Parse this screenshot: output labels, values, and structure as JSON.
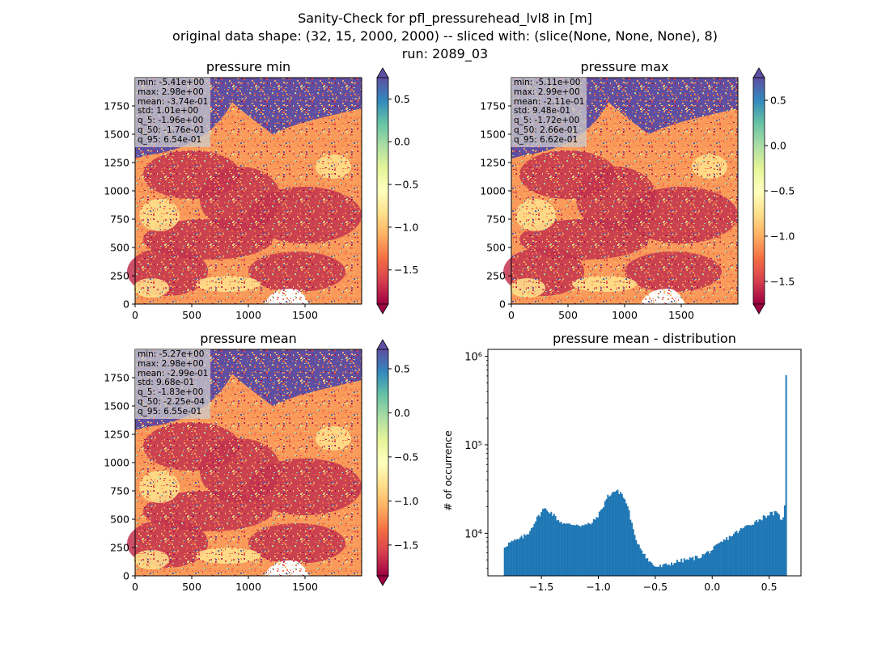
{
  "figure": {
    "title_lines": [
      "Sanity-Check for pfl_pressurehead_lvl8 in [m]",
      "original data shape: (32, 15, 2000, 2000) -- sliced with: (slice(None, None, None), 8)",
      "run: 2089_03"
    ]
  },
  "colormap": "Spectral",
  "chart_data": [
    {
      "type": "heatmap",
      "title": "pressure min",
      "xlim": [
        0,
        2000
      ],
      "ylim": [
        0,
        2000
      ],
      "xticks": [
        0,
        500,
        1000,
        1500
      ],
      "yticks": [
        0,
        250,
        500,
        750,
        1000,
        1250,
        1500,
        1750
      ],
      "colorbar": {
        "range": [
          -1.9,
          0.75
        ],
        "ticks": [
          -1.5,
          -1.0,
          -0.5,
          0.0,
          0.5
        ],
        "tick_labels": [
          "−1.5",
          "−1.0",
          "−0.5",
          "0.0",
          "0.5"
        ],
        "extend": "both"
      },
      "stats": [
        "min: -5.41e+00",
        "max: 2.98e+00",
        "mean: -3.74e-01",
        "std: 1.01e+00",
        "q_5: -1.96e+00",
        "q_50: -1.76e-01",
        "q_95: 6.54e-01"
      ]
    },
    {
      "type": "heatmap",
      "title": "pressure max",
      "xlim": [
        0,
        2000
      ],
      "ylim": [
        0,
        2000
      ],
      "xticks": [
        0,
        500,
        1000,
        1500
      ],
      "yticks": [
        0,
        250,
        500,
        750,
        1000,
        1250,
        1500,
        1750
      ],
      "colorbar": {
        "range": [
          -1.75,
          0.75
        ],
        "ticks": [
          -1.5,
          -1.0,
          -0.5,
          0.0,
          0.5
        ],
        "tick_labels": [
          "−1.5",
          "−1.0",
          "−0.5",
          "0.0",
          "0.5"
        ],
        "extend": "both"
      },
      "stats": [
        "min: -5.11e+00",
        "max: 2.99e+00",
        "mean: -2.11e-01",
        "std: 9.48e-01",
        "q_5: -1.72e+00",
        "q_50: 2.66e-01",
        "q_95: 6.62e-01"
      ]
    },
    {
      "type": "heatmap",
      "title": "pressure mean",
      "xlim": [
        0,
        2000
      ],
      "ylim": [
        0,
        2000
      ],
      "xticks": [
        0,
        500,
        1000,
        1500
      ],
      "yticks": [
        0,
        250,
        500,
        750,
        1000,
        1250,
        1500,
        1750
      ],
      "colorbar": {
        "range": [
          -1.85,
          0.72
        ],
        "ticks": [
          -1.5,
          -1.0,
          -0.5,
          0.0,
          0.5
        ],
        "tick_labels": [
          "−1.5",
          "−1.0",
          "−0.5",
          "0.0",
          "0.5"
        ],
        "extend": "both"
      },
      "stats": [
        "min: -5.27e+00",
        "max: 2.98e+00",
        "mean: -2.99e-01",
        "std: 9.68e-01",
        "q_5: -1.83e+00",
        "q_50: -2.25e-04",
        "q_95: 6.55e-01"
      ]
    },
    {
      "type": "bar",
      "subtype": "histogram",
      "title": "pressure mean - distribution",
      "xlabel": "",
      "ylabel": "# of occurrence",
      "yscale": "log",
      "xlim": [
        -1.97,
        0.78
      ],
      "ylim": [
        3300,
        1200000
      ],
      "xticks": [
        -1.5,
        -1.0,
        -0.5,
        0.0,
        0.5
      ],
      "xtick_labels": [
        "−1.5",
        "−1.0",
        "−0.5",
        "0.0",
        "0.5"
      ],
      "yticks": [
        10000,
        100000,
        1000000
      ],
      "ytick_labels": [
        "10⁴",
        "10⁵",
        "10⁶"
      ],
      "color": "#1f77b4",
      "bin_range": [
        -1.83,
        0.655
      ],
      "profile": {
        "x": [
          -1.83,
          -1.78,
          -1.7,
          -1.62,
          -1.55,
          -1.48,
          -1.42,
          -1.35,
          -1.28,
          -1.2,
          -1.12,
          -1.05,
          -0.98,
          -0.92,
          -0.86,
          -0.8,
          -0.74,
          -0.68,
          -0.62,
          -0.56,
          -0.5,
          -0.45,
          -0.4,
          -0.3,
          -0.2,
          -0.1,
          0.0,
          0.1,
          0.2,
          0.3,
          0.4,
          0.5,
          0.56,
          0.6,
          0.625,
          0.635,
          0.64,
          0.645,
          0.65,
          0.655
        ],
        "y": [
          7000,
          7800,
          8500,
          9800,
          14000,
          19000,
          17500,
          14000,
          12500,
          12700,
          12200,
          13200,
          17500,
          26000,
          30000,
          29000,
          20000,
          9000,
          6600,
          4900,
          4200,
          4200,
          4400,
          4800,
          5100,
          5500,
          6500,
          8200,
          10000,
          12000,
          14000,
          16500,
          17000,
          15000,
          14500,
          18000,
          27000,
          200000,
          900000,
          230000
        ]
      }
    }
  ]
}
